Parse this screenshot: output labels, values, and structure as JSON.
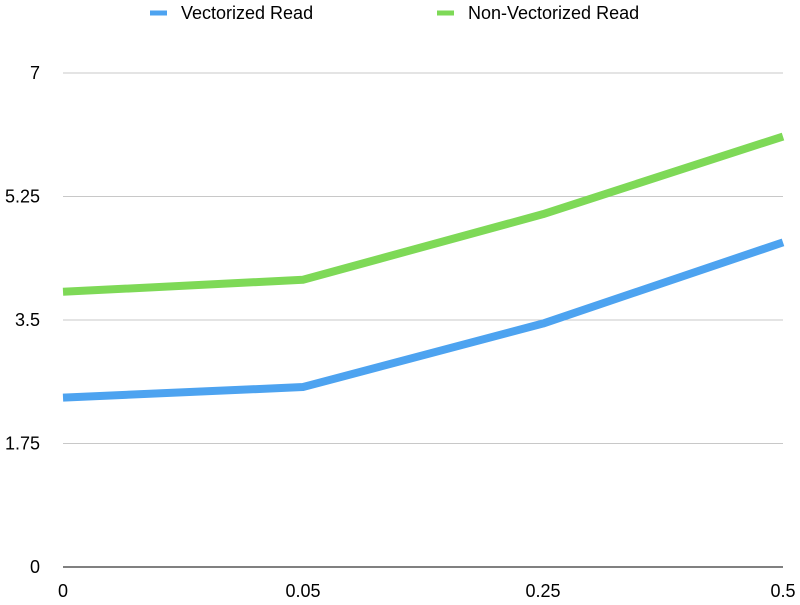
{
  "chart_data": {
    "type": "line",
    "categories": [
      "0",
      "0.05",
      "0.25",
      "0.5"
    ],
    "series": [
      {
        "name": "Vectorized Read",
        "color": "#4da3f0",
        "values": [
          2.4,
          2.55,
          3.45,
          4.6
        ]
      },
      {
        "name": "Non-Vectorized Read",
        "color": "#7ed957",
        "values": [
          3.9,
          4.07,
          5.0,
          6.1
        ]
      }
    ],
    "y_ticks": [
      "0",
      "1.75",
      "3.5",
      "5.25",
      "7"
    ],
    "ylim": [
      0,
      7
    ],
    "grid": true,
    "legend_position": "top"
  }
}
